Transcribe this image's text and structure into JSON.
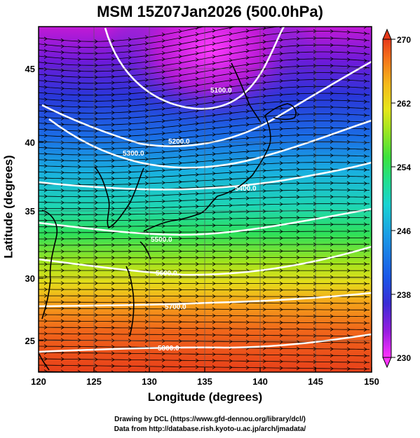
{
  "title": "MSM 15Z07Jan2026 (500.0hPa)",
  "axes": {
    "xlabel": "Longitude (degrees)",
    "ylabel": "Latitude  (degrees)",
    "xticks": [
      "120",
      "125",
      "130",
      "135",
      "140",
      "145",
      "150"
    ],
    "yticks": [
      "25",
      "30",
      "35",
      "40",
      "45"
    ]
  },
  "colorbar": {
    "ticks": [
      "230",
      "238",
      "246",
      "254",
      "262",
      "270"
    ],
    "colors": [
      "#ff33ff",
      "#9a1ce0",
      "#3a2cd6",
      "#1a56e8",
      "#1a9ae6",
      "#19d3d3",
      "#22e08a",
      "#3ce23c",
      "#a6e61e",
      "#e6e61a",
      "#f5b81a",
      "#f5721a",
      "#e63a1a"
    ]
  },
  "contours": {
    "labels": [
      "5100.0",
      "5200.0",
      "5300.0",
      "5400.0",
      "5500.0",
      "5600.0",
      "5700.0",
      "5800.0"
    ]
  },
  "credits": {
    "line1": "Drawing by DCL (https://www.gfd-dennou.org/library/dcl/)",
    "line2": "Data from http://database.rish.kyoto-u.ac.jp/arch/jmadata/"
  }
}
